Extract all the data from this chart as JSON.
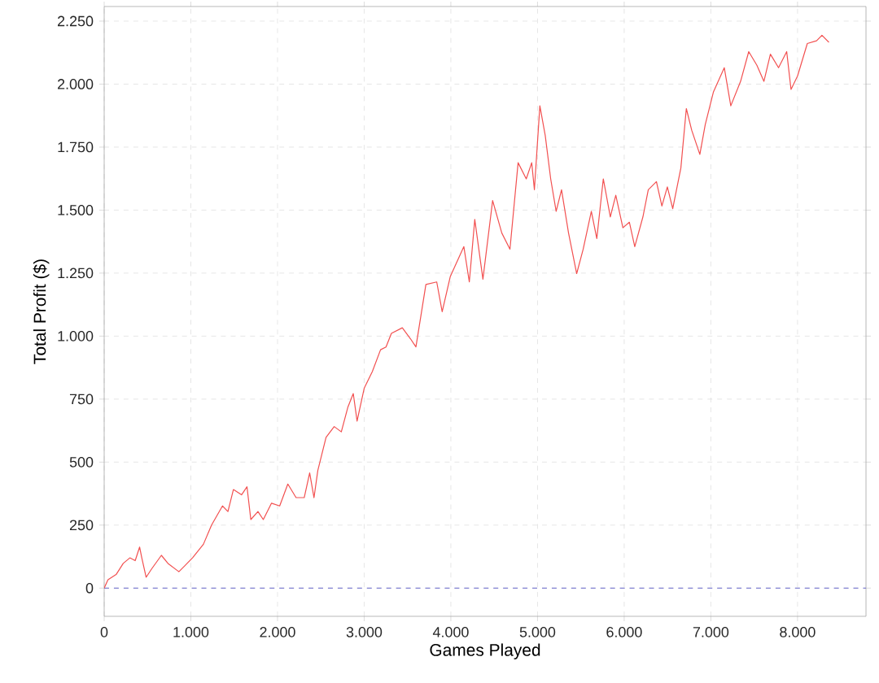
{
  "chart_data": {
    "type": "line",
    "xlabel": "Games Played",
    "ylabel": "Total Profit ($)",
    "x": [
      0,
      44,
      138,
      220,
      296,
      358,
      409,
      434,
      484,
      547,
      660,
      736,
      862,
      925,
      1019,
      1145,
      1239,
      1365,
      1428,
      1491,
      1585,
      1648,
      1692,
      1774,
      1836,
      1931,
      2025,
      2119,
      2214,
      2308,
      2371,
      2421,
      2465,
      2560,
      2654,
      2736,
      2811,
      2874,
      2918,
      3000,
      3094,
      3189,
      3252,
      3314,
      3440,
      3535,
      3597,
      3642,
      3712,
      3837,
      3900,
      3994,
      4150,
      4213,
      4276,
      4370,
      4482,
      4588,
      4682,
      4776,
      4870,
      4933,
      4964,
      5027,
      5089,
      5152,
      5215,
      5277,
      5358,
      5452,
      5527,
      5621,
      5684,
      5759,
      5840,
      5903,
      5985,
      6060,
      6122,
      6216,
      6278,
      6372,
      6435,
      6498,
      6560,
      6654,
      6717,
      6779,
      6873,
      6935,
      7029,
      7155,
      7230,
      7343,
      7437,
      7531,
      7612,
      7687,
      7781,
      7875,
      7925,
      8000,
      8113,
      8220,
      8282,
      8362
    ],
    "series": [
      {
        "color": "#f25050",
        "values": [
          0,
          33,
          54,
          98,
          120,
          109,
          163,
          120,
          43,
          76,
          130,
          98,
          65,
          87,
          120,
          174,
          250,
          326,
          304,
          391,
          370,
          402,
          272,
          304,
          272,
          337,
          326,
          413,
          359,
          359,
          457,
          359,
          467,
          598,
          641,
          620,
          717,
          772,
          663,
          793,
          859,
          946,
          957,
          1011,
          1033,
          989,
          957,
          1054,
          1205,
          1215,
          1097,
          1237,
          1355,
          1215,
          1463,
          1226,
          1538,
          1409,
          1345,
          1688,
          1624,
          1688,
          1581,
          1914,
          1796,
          1624,
          1495,
          1581,
          1409,
          1248,
          1345,
          1495,
          1387,
          1624,
          1473,
          1559,
          1430,
          1452,
          1355,
          1473,
          1581,
          1613,
          1516,
          1592,
          1506,
          1667,
          1903,
          1817,
          1721,
          1839,
          1968,
          2065,
          1914,
          2011,
          2129,
          2075,
          2011,
          2119,
          2065,
          2129,
          1979,
          2032,
          2161,
          2172,
          2194,
          2166
        ]
      }
    ],
    "xlim": [
      0,
      8790
    ],
    "ylim": [
      -112,
      2308
    ],
    "xticks": [
      0,
      {
        "value": 1000,
        "label": "1.000"
      },
      {
        "value": 2000,
        "label": "2.000"
      },
      {
        "value": 3000,
        "label": "3.000"
      },
      {
        "value": 4000,
        "label": "4.000"
      },
      {
        "value": 5000,
        "label": "5.000"
      },
      {
        "value": 6000,
        "label": "6.000"
      },
      {
        "value": 7000,
        "label": "7.000"
      },
      {
        "value": 8000,
        "label": "8.000"
      }
    ],
    "yticks": [
      0,
      250,
      500,
      750,
      {
        "value": 1000,
        "label": "1.000"
      },
      {
        "value": 1250,
        "label": "1.250"
      },
      {
        "value": 1500,
        "label": "1.500"
      },
      {
        "value": 1750,
        "label": "1.750"
      },
      {
        "value": 2000,
        "label": "2.000"
      },
      {
        "value": 2250,
        "label": "2.250"
      }
    ],
    "grid": true,
    "ref_lines": [
      {
        "axis": "y",
        "value": 0,
        "color": "#6666cc",
        "line_style": "dashed"
      }
    ]
  }
}
